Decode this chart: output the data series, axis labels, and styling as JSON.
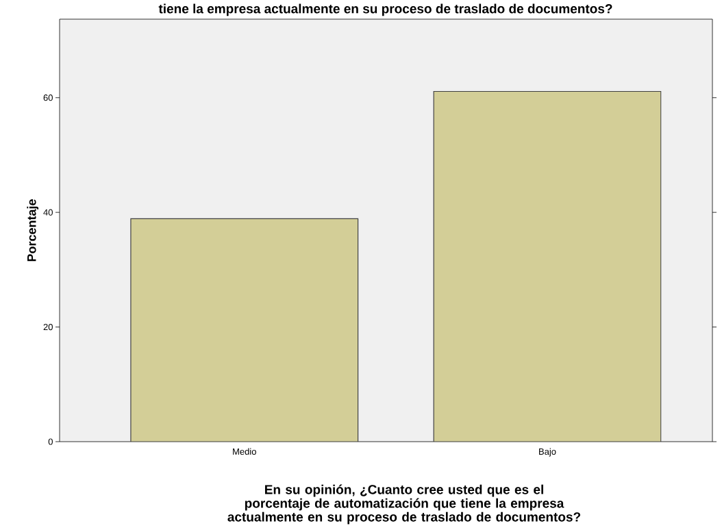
{
  "chart_data": {
    "type": "bar",
    "title": "tiene la empresa actualmente en su proceso de traslado de documentos?",
    "xlabel": "En su opinión, ¿Cuanto cree usted que es el porcentaje de automatización que tiene la empresa actualmente en su  proceso de traslado de documentos?",
    "ylabel": "Porcentaje",
    "categories": [
      "Medio",
      "Bajo"
    ],
    "values": [
      38.9,
      61.1
    ],
    "color": "#d3ce97",
    "ylim": [
      0,
      73.7
    ],
    "yticks": [
      0,
      20,
      40,
      60
    ]
  }
}
